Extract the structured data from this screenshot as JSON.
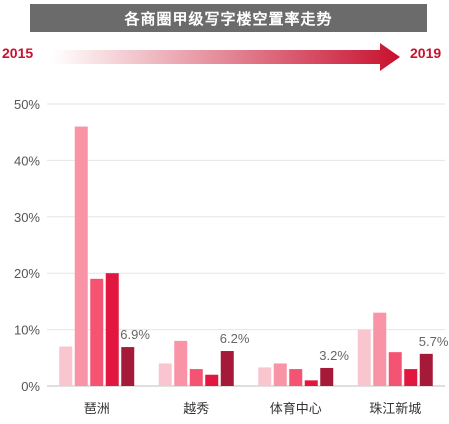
{
  "header": {
    "title": "各商圈甲级写字楼空置率走势",
    "year_start": "2015",
    "year_end": "2019"
  },
  "colors": {
    "title_bg": "#6b6b6b",
    "accent": "#c8102e",
    "series": [
      "#f9c6cf",
      "#f994a7",
      "#f45472",
      "#e2173f",
      "#a51a39"
    ]
  },
  "chart_data": {
    "type": "bar",
    "title": "各商圈甲级写字楼空置率走势",
    "categories": [
      "琶洲",
      "越秀",
      "体育中心",
      "珠江新城"
    ],
    "series": [
      {
        "values": [
          7,
          4,
          3.3,
          10
        ]
      },
      {
        "values": [
          46,
          8,
          4,
          13
        ]
      },
      {
        "values": [
          19,
          3,
          3,
          6
        ]
      },
      {
        "values": [
          20,
          2,
          1,
          3
        ]
      },
      {
        "values": [
          6.9,
          6.2,
          3.2,
          5.7
        ]
      }
    ],
    "data_labels": [
      "6.9%",
      "6.2%",
      "3.2%",
      "5.7%"
    ],
    "yticks": [
      "0%",
      "10%",
      "20%",
      "30%",
      "40%",
      "50%"
    ],
    "ylim": [
      0,
      50
    ],
    "grid": true,
    "legend": "none"
  }
}
